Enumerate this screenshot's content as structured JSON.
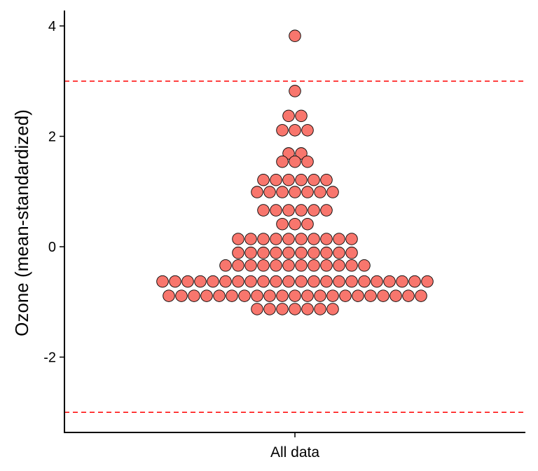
{
  "chart_data": {
    "type": "scatter",
    "subtype": "beeswarm",
    "title": "",
    "xlabel": "",
    "ylabel": "Ozone (mean-standardized)",
    "categories": [
      "All data"
    ],
    "ylim": [
      -3.4,
      4.3
    ],
    "yticks": [
      -2,
      0,
      2,
      4
    ],
    "ytick_labels": [
      "-2",
      "0",
      "2",
      "4"
    ],
    "grid": false,
    "reference_lines": [
      {
        "y": 3,
        "style": "dashed",
        "color": "#FF0000"
      },
      {
        "y": -3,
        "style": "dashed",
        "color": "#FF0000"
      }
    ],
    "point_color": "#F8766D",
    "point_outline": "#000000",
    "bins": [
      {
        "y": 3.82,
        "count": 1
      },
      {
        "y": 2.82,
        "count": 1
      },
      {
        "y": 2.37,
        "count": 2
      },
      {
        "y": 2.11,
        "count": 3
      },
      {
        "y": 1.69,
        "count": 2
      },
      {
        "y": 1.54,
        "count": 3
      },
      {
        "y": 1.21,
        "count": 6
      },
      {
        "y": 0.99,
        "count": 7
      },
      {
        "y": 0.66,
        "count": 6
      },
      {
        "y": 0.41,
        "count": 3
      },
      {
        "y": 0.14,
        "count": 10
      },
      {
        "y": -0.11,
        "count": 10
      },
      {
        "y": -0.34,
        "count": 12
      },
      {
        "y": -0.63,
        "count": 22
      },
      {
        "y": -0.89,
        "count": 21
      },
      {
        "y": -1.13,
        "count": 7
      }
    ]
  }
}
